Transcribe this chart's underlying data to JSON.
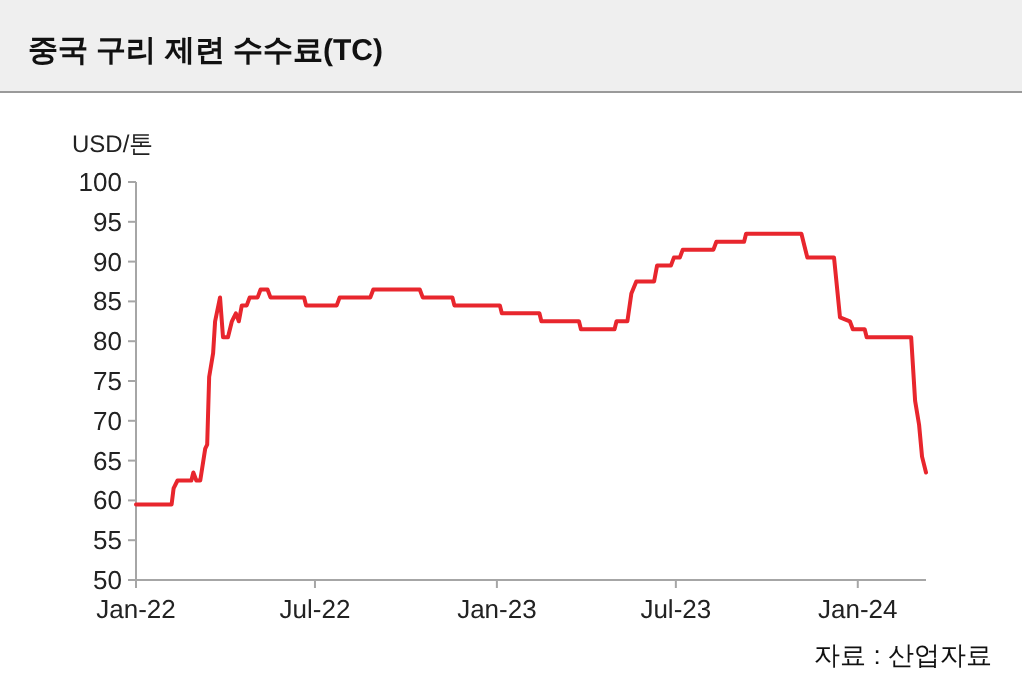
{
  "chart_data": {
    "type": "line",
    "title": "중국 구리 제련 수수료(TC)",
    "ylabel": "USD/톤",
    "annotations": [
      "자료 : 산업자료"
    ],
    "x": [
      "2022-01-01",
      "2022-02-06",
      "2022-02-08",
      "2022-02-12",
      "2022-02-26",
      "2022-02-28",
      "2022-03-03",
      "2022-03-07",
      "2022-03-12",
      "2022-03-14",
      "2022-03-16",
      "2022-03-20",
      "2022-03-22",
      "2022-03-27",
      "2022-03-30",
      "2022-04-04",
      "2022-04-08",
      "2022-04-12",
      "2022-04-15",
      "2022-04-18",
      "2022-04-23",
      "2022-04-26",
      "2022-05-04",
      "2022-05-07",
      "2022-05-14",
      "2022-05-17",
      "2022-06-20",
      "2022-06-22",
      "2022-07-23",
      "2022-07-26",
      "2022-08-26",
      "2022-08-29",
      "2022-10-15",
      "2022-10-18",
      "2022-11-17",
      "2022-11-19",
      "2023-01-04",
      "2023-01-06",
      "2023-02-13",
      "2023-02-15",
      "2023-03-25",
      "2023-03-27",
      "2023-04-30",
      "2023-05-02",
      "2023-05-13",
      "2023-05-17",
      "2023-05-22",
      "2023-06-09",
      "2023-06-12",
      "2023-06-26",
      "2023-06-29",
      "2023-07-05",
      "2023-07-08",
      "2023-08-08",
      "2023-08-11",
      "2023-09-08",
      "2023-09-10",
      "2023-11-05",
      "2023-11-08",
      "2023-11-11",
      "2023-12-08",
      "2023-12-14",
      "2023-12-24",
      "2023-12-27",
      "2024-01-08",
      "2024-01-10",
      "2024-02-24",
      "2024-02-28",
      "2024-03-03",
      "2024-03-06",
      "2024-03-10"
    ],
    "series": [
      {
        "color": "#e8262d",
        "values": [
          59.5,
          59.5,
          61.5,
          62.5,
          62.5,
          63.5,
          62.5,
          62.5,
          66.5,
          67,
          75.5,
          78.5,
          82.5,
          85.5,
          80.5,
          80.5,
          82.5,
          83.5,
          82.5,
          84.5,
          84.5,
          85.5,
          85.5,
          86.5,
          86.5,
          85.5,
          85.5,
          84.5,
          84.5,
          85.5,
          85.5,
          86.5,
          86.5,
          85.5,
          85.5,
          84.5,
          84.5,
          83.5,
          83.5,
          82.5,
          82.5,
          81.5,
          81.5,
          82.5,
          82.5,
          86,
          87.5,
          87.5,
          89.5,
          89.5,
          90.5,
          90.5,
          91.5,
          91.5,
          92.5,
          92.5,
          93.5,
          93.5,
          92,
          90.5,
          90.5,
          83,
          82.5,
          81.5,
          81.5,
          80.5,
          80.5,
          72.5,
          69.5,
          65.5,
          63.5
        ]
      }
    ],
    "xlim": [
      "2022-01-01",
      "2024-03-10"
    ],
    "xticks": [
      {
        "value": "2022-01-01",
        "label": "Jan-22"
      },
      {
        "value": "2022-07-01",
        "label": "Jul-22"
      },
      {
        "value": "2023-01-01",
        "label": "Jan-23"
      },
      {
        "value": "2023-07-01",
        "label": "Jul-23"
      },
      {
        "value": "2024-01-01",
        "label": "Jan-24"
      }
    ],
    "ylim": [
      50,
      100
    ],
    "yticks": [
      50,
      55,
      60,
      65,
      70,
      75,
      80,
      85,
      90,
      95,
      100
    ],
    "grid": false,
    "marker": "none",
    "line_style": "solid"
  }
}
